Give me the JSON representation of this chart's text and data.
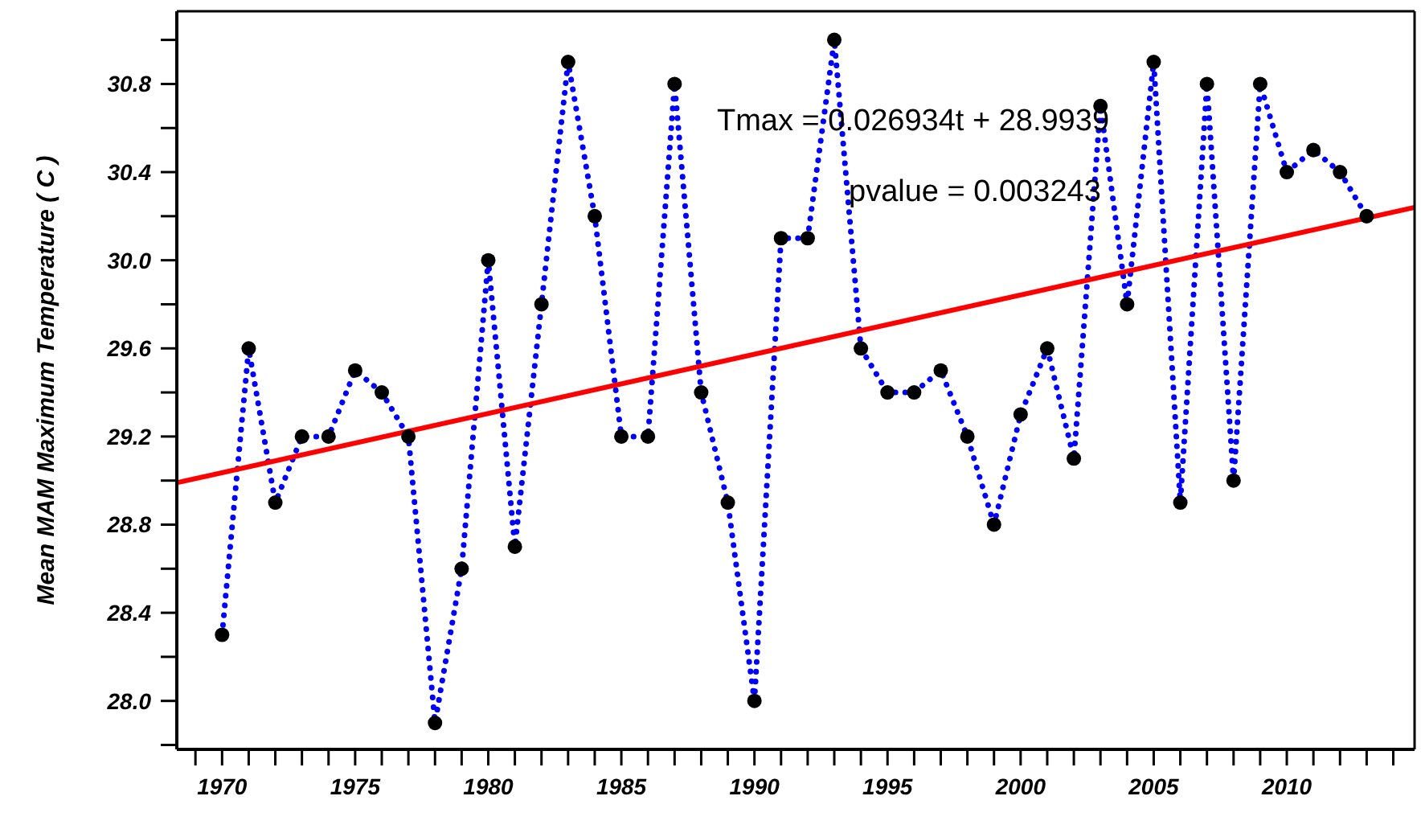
{
  "chart_data": {
    "type": "line",
    "ylabel": "Mean MAM Maximum Temperature ( C )",
    "annotations": [
      "Tmax = 0.026934t + 28.9939",
      "pvalue = 0.003243"
    ],
    "x": [
      1970,
      1971,
      1972,
      1973,
      1974,
      1975,
      1976,
      1977,
      1978,
      1979,
      1980,
      1981,
      1982,
      1983,
      1984,
      1985,
      1986,
      1987,
      1988,
      1989,
      1990,
      1991,
      1992,
      1993,
      1994,
      1995,
      1996,
      1997,
      1998,
      1999,
      2000,
      2001,
      2002,
      2003,
      2004,
      2005,
      2006,
      2007,
      2008,
      2009,
      2010,
      2011,
      2012,
      2013
    ],
    "series": [
      {
        "color": "#0000ff",
        "line_style": "dotted",
        "marker": "none",
        "values": [
          28.3,
          29.6,
          28.9,
          29.2,
          29.2,
          29.5,
          29.4,
          29.2,
          27.9,
          28.6,
          30.0,
          28.7,
          29.8,
          30.9,
          30.2,
          29.2,
          29.2,
          30.8,
          29.4,
          28.9,
          28.0,
          30.1,
          30.1,
          31.0,
          29.6,
          29.4,
          29.4,
          29.5,
          29.2,
          28.8,
          29.3,
          29.6,
          29.1,
          30.7,
          29.8,
          30.9,
          28.9,
          30.8,
          29.0,
          30.8,
          30.4,
          30.5,
          30.4,
          30.2
        ]
      },
      {
        "type": "scatter",
        "color": "#000000",
        "marker": "circle",
        "values": [
          28.3,
          29.6,
          28.9,
          29.2,
          29.2,
          29.5,
          29.4,
          29.2,
          27.9,
          28.6,
          30.0,
          28.7,
          29.8,
          30.9,
          30.2,
          29.2,
          29.2,
          30.8,
          29.4,
          28.9,
          28.0,
          30.1,
          30.1,
          31.0,
          29.6,
          29.4,
          29.4,
          29.5,
          29.2,
          28.8,
          29.3,
          29.6,
          29.1,
          30.7,
          29.8,
          30.9,
          28.9,
          30.8,
          29.0,
          30.8,
          30.4,
          30.5,
          30.4,
          30.2
        ]
      },
      {
        "type": "line",
        "color": "#ff0000",
        "line_style": "solid",
        "marker": "none",
        "x": [
          1968.3,
          2014.8
        ],
        "values": [
          28.99,
          30.24
        ]
      }
    ],
    "xlim": [
      1968.3,
      2014.8
    ],
    "xticks": [
      {
        "value": 1969,
        "label": null
      },
      1970,
      {
        "value": 1971,
        "label": null
      },
      {
        "value": 1972,
        "label": null
      },
      {
        "value": 1973,
        "label": null
      },
      {
        "value": 1974,
        "label": null
      },
      1975,
      {
        "value": 1976,
        "label": null
      },
      {
        "value": 1977,
        "label": null
      },
      {
        "value": 1978,
        "label": null
      },
      {
        "value": 1979,
        "label": null
      },
      1980,
      {
        "value": 1981,
        "label": null
      },
      {
        "value": 1982,
        "label": null
      },
      {
        "value": 1983,
        "label": null
      },
      {
        "value": 1984,
        "label": null
      },
      1985,
      {
        "value": 1986,
        "label": null
      },
      {
        "value": 1987,
        "label": null
      },
      {
        "value": 1988,
        "label": null
      },
      {
        "value": 1989,
        "label": null
      },
      1990,
      {
        "value": 1991,
        "label": null
      },
      {
        "value": 1992,
        "label": null
      },
      {
        "value": 1993,
        "label": null
      },
      {
        "value": 1994,
        "label": null
      },
      1995,
      {
        "value": 1996,
        "label": null
      },
      {
        "value": 1997,
        "label": null
      },
      {
        "value": 1998,
        "label": null
      },
      {
        "value": 1999,
        "label": null
      },
      2000,
      {
        "value": 2001,
        "label": null
      },
      {
        "value": 2002,
        "label": null
      },
      {
        "value": 2003,
        "label": null
      },
      {
        "value": 2004,
        "label": null
      },
      2005,
      {
        "value": 2006,
        "label": null
      },
      {
        "value": 2007,
        "label": null
      },
      {
        "value": 2008,
        "label": null
      },
      {
        "value": 2009,
        "label": null
      },
      2010,
      {
        "value": 2011,
        "label": null
      },
      {
        "value": 2012,
        "label": null
      },
      {
        "value": 2013,
        "label": null
      },
      {
        "value": 2014,
        "label": null
      }
    ],
    "ylim": [
      27.78,
      31.13
    ],
    "yticks": [
      {
        "value": 27.8,
        "label": null
      },
      {
        "value": 28.0,
        "label": "28.0"
      },
      {
        "value": 28.2,
        "label": null
      },
      {
        "value": 28.4,
        "label": "28.4"
      },
      {
        "value": 28.6,
        "label": null
      },
      {
        "value": 28.8,
        "label": "28.8"
      },
      {
        "value": 29.0,
        "label": null
      },
      {
        "value": 29.2,
        "label": "29.2"
      },
      {
        "value": 29.4,
        "label": null
      },
      {
        "value": 29.6,
        "label": "29.6"
      },
      {
        "value": 29.8,
        "label": null
      },
      {
        "value": 30.0,
        "label": "30.0"
      },
      {
        "value": 30.2,
        "label": null
      },
      {
        "value": 30.4,
        "label": "30.4"
      },
      {
        "value": 30.6,
        "label": null
      },
      {
        "value": 30.8,
        "label": "30.8"
      },
      {
        "value": 31.0,
        "label": null
      }
    ]
  }
}
